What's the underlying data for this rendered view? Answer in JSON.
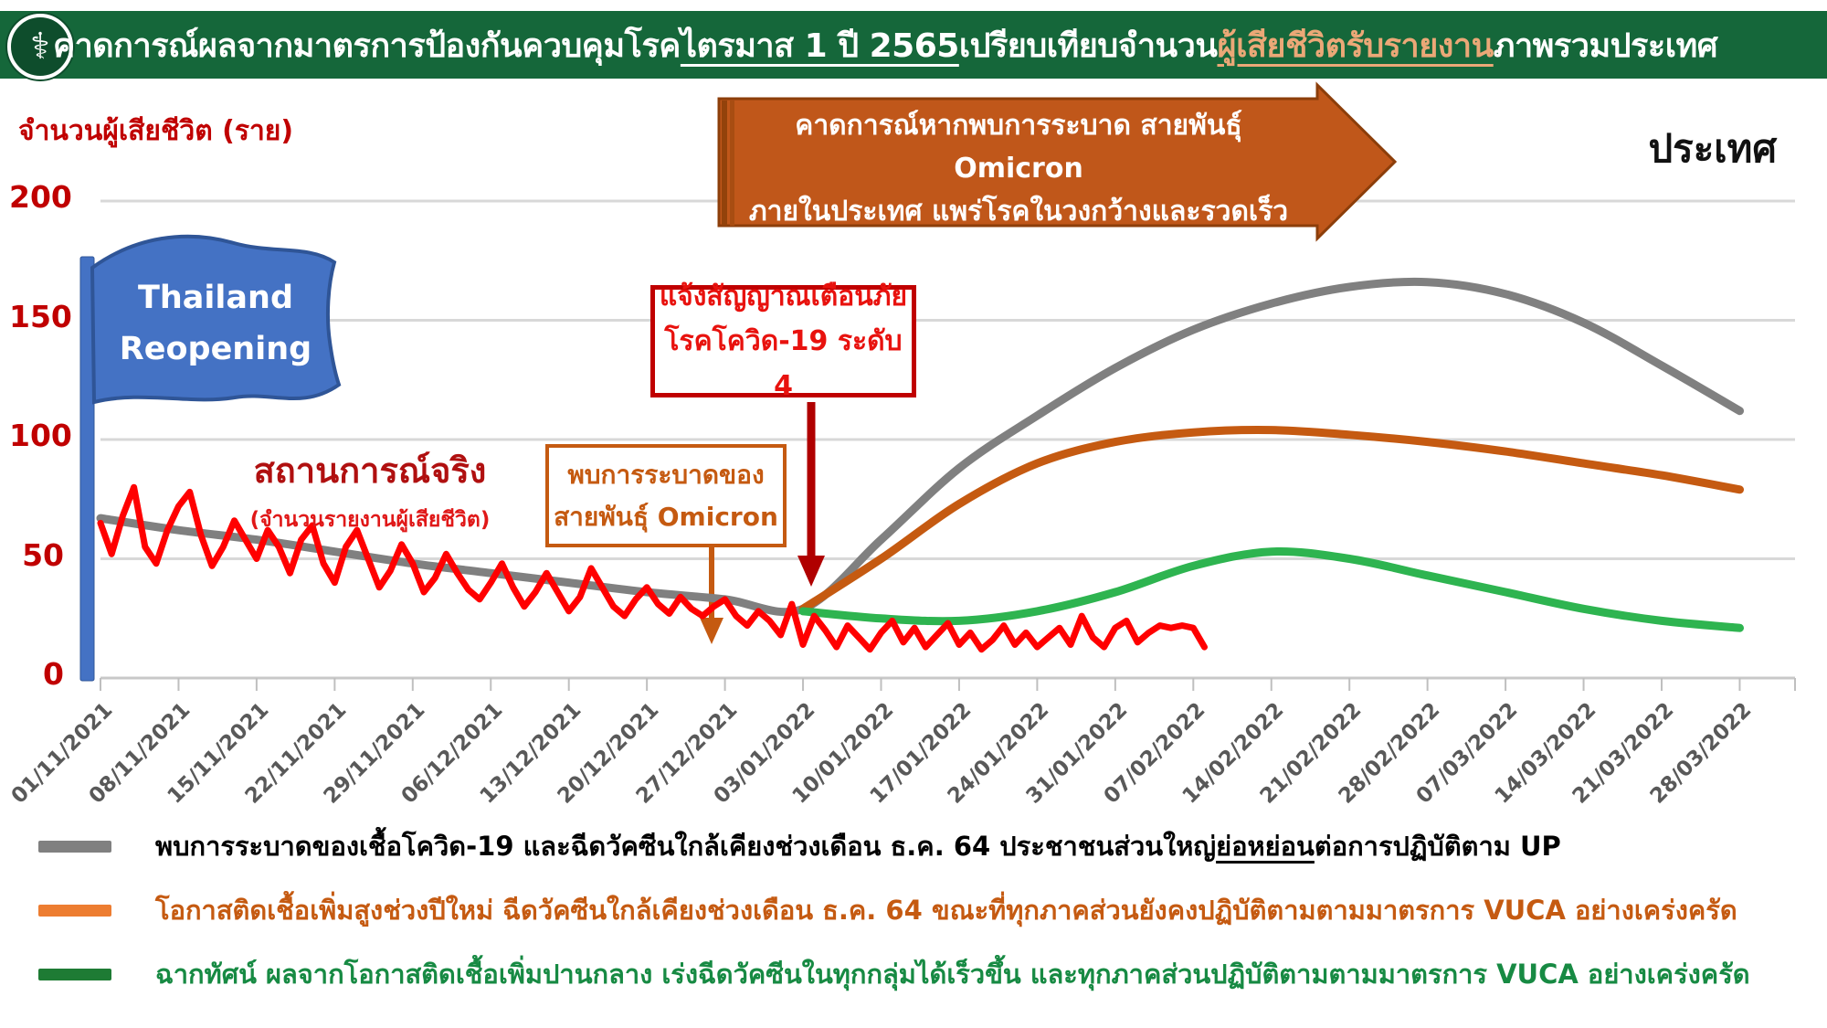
{
  "header": {
    "title_prefix": "คาดการณ์ผลจากมาตรการป้องกันควบคุมโรค ",
    "title_underlined": "ไตรมาส 1 ปี 2565",
    "title_mid": " เปรียบเทียบจำนวน",
    "title_highlight": "ผู้เสียชีวิตรับรายงาน",
    "title_suffix": " ภาพรวมประเทศ",
    "bg_color": "#15673A",
    "highlight_color": "#EBA877",
    "logo_name": "ministry-of-public-health-emblem"
  },
  "chart": {
    "y_axis_title": "จำนวนผู้เสียชีวิต (ราย)",
    "y_ticks": [
      200,
      150,
      100,
      50,
      0
    ],
    "region_label": "ประเทศ"
  },
  "annotations": {
    "flag": {
      "line1": "Thailand",
      "line2": "Reopening",
      "color": "#4472C4",
      "border_color": "#2F5597"
    },
    "banner": {
      "line1": "คาดการณ์หากพบการระบาด สายพันธุ์ Omicron",
      "line2": "ภายในประเทศ แพร่โรคในวงกว้างและรวดเร็ว",
      "color": "#C0571A",
      "border_color": "#8C3E0A",
      "edge_color1": "#93420B",
      "edge_color2": "#A84D12"
    },
    "alert_box": {
      "line1": "แจ้งสัญญาณเตือนภัย",
      "line2": "โรคโควิด-19 ระดับ 4",
      "border_color": "#C00000",
      "text_color": "#E8120E",
      "arrow_color": "#B00000"
    },
    "omicron_box": {
      "line1": "พบการระบาดของ",
      "line2": "สายพันธุ์ Omicron",
      "border_color": "#C55A11",
      "text_color": "#C55A11",
      "arrow_color": "#C55A11"
    },
    "actual": {
      "title": "สถานการณ์จริง",
      "subtitle": "(จำนวนรายงานผู้เสียชีวิต)"
    }
  },
  "legend": [
    {
      "color": "#808080",
      "text_color": "#000000",
      "pre": "พบการระบาดของเชื้อโควิด-19 และฉีดวัคซีนใกล้เคียงช่วงเดือน ธ.ค. 64 ประชาชนส่วนใหญ่",
      "underlined": "ย่อหย่อน",
      "post": "ต่อการปฏิบัติตาม UP"
    },
    {
      "color": "#ED7D31",
      "text_color": "#C55A11",
      "pre": "โอกาสติดเชื้อเพิ่มสูงช่วงปีใหม่ ฉีดวัคซีนใกล้เคียงช่วงเดือน ธ.ค. 64 ขณะที่ทุกภาคส่วนยังคงปฏิบัติตามตามมาตรการ VUCA อย่างเคร่งครัด",
      "underlined": "",
      "post": ""
    },
    {
      "color": "#1E7B34",
      "text_color": "#178A43",
      "pre": "ฉากทัศน์ ผลจากโอกาสติดเชื้อเพิ่มปานกลาง เร่งฉีดวัคซีนในทุกกลุ่มได้เร็วขึ้น และทุกภาคส่วนปฏิบัติตามตามมาตรการ VUCA อย่างเคร่งครัด",
      "underlined": "",
      "post": ""
    }
  ],
  "chart_data": {
    "type": "line",
    "title": "คาดการณ์ผลจากมาตรการป้องกันควบคุมโรค ไตรมาส 1 ปี 2565 เปรียบเทียบจำนวนผู้เสียชีวิตรับรายงาน ภาพรวมประเทศ",
    "xlabel": "",
    "ylabel": "จำนวนผู้เสียชีวิต (ราย)",
    "ylim": [
      0,
      200
    ],
    "y_gridlines": [
      50,
      100,
      150,
      200
    ],
    "grid_on": true,
    "grid_color": "#D8D8D8",
    "axis_color": "#C8C8C8",
    "tick_color": "#BFBFBF",
    "legend_position": "bottom",
    "x_tick_labels": [
      "01/11/2021",
      "08/11/2021",
      "15/11/2021",
      "22/11/2021",
      "29/11/2021",
      "06/12/2021",
      "13/12/2021",
      "20/12/2021",
      "27/12/2021",
      "03/01/2022",
      "10/01/2022",
      "17/01/2022",
      "24/01/2022",
      "31/01/2022",
      "07/02/2022",
      "14/02/2022",
      "21/02/2022",
      "28/02/2022",
      "07/03/2022",
      "14/03/2022",
      "21/03/2022",
      "28/03/2022"
    ],
    "series": [
      {
        "id": "projection-lax-up-gray",
        "name": "พบการระบาดของเชื้อโควิด-19 และฉีดวัคซีนใกล้เคียงช่วงเดือน ธ.ค. 64 ประชาชนส่วนใหญ่ย่อหย่อนต่อการปฏิบัติตาม UP",
        "color": "#808080",
        "width": 9,
        "smooth": true,
        "cadence": "weekly",
        "start_week": 0,
        "values": [
          67,
          62,
          58,
          53,
          48,
          44,
          40,
          36,
          33,
          29,
          58,
          88,
          110,
          130,
          146,
          157,
          164,
          166,
          161,
          149,
          131,
          112
        ]
      },
      {
        "id": "projection-newyear-vuca-orange",
        "name": "โอกาสติดเชื้อเพิ่มสูงช่วงปีใหม่ ฉีดวัคซีนใกล้เคียงช่วงเดือน ธ.ค. 64 ขณะที่ทุกภาคส่วนยังคงปฏิบัติตามตามมาตรการ VUCA อย่างเคร่งครัด",
        "color": "#C55A11",
        "width": 9,
        "smooth": true,
        "cadence": "weekly",
        "start_week": 9,
        "values": [
          29,
          50,
          73,
          90,
          99,
          103,
          104,
          102,
          99,
          95,
          90,
          85,
          79
        ]
      },
      {
        "id": "scenario-moderate-vuca-green",
        "name": "ฉากทัศน์ ผลจากโอกาสติดเชื้อเพิ่มปานกลาง เร่งฉีดวัคซีนในทุกกลุ่มได้เร็วขึ้น และทุกภาคส่วนปฏิบัติตามตามมาตรการ VUCA อย่างเคร่งครัด",
        "color": "#2EB450",
        "width": 9,
        "smooth": true,
        "cadence": "weekly",
        "start_week": 9,
        "values": [
          28,
          25,
          24,
          28,
          36,
          47,
          53,
          50,
          43,
          36,
          29,
          24,
          21
        ]
      },
      {
        "id": "actual-reported-deaths-red",
        "name": "สถานการณ์จริง (จำนวนรายงานผู้เสียชีวิต)",
        "color": "#FF0000",
        "width": 7,
        "smooth": false,
        "cadence": "daily",
        "start_week": 0,
        "values": [
          65,
          52,
          68,
          80,
          55,
          48,
          62,
          72,
          78,
          60,
          47,
          55,
          66,
          58,
          50,
          62,
          55,
          44,
          58,
          64,
          48,
          40,
          55,
          62,
          50,
          38,
          45,
          56,
          48,
          36,
          42,
          52,
          44,
          37,
          33,
          40,
          48,
          38,
          30,
          36,
          44,
          36,
          28,
          34,
          46,
          38,
          30,
          26,
          33,
          38,
          31,
          27,
          34,
          29,
          26,
          30,
          33,
          26,
          22,
          28,
          24,
          18,
          31,
          14,
          26,
          20,
          13,
          22,
          17,
          12,
          19,
          24,
          15,
          21,
          13,
          18,
          23,
          14,
          19,
          12,
          16,
          22,
          14,
          19,
          13,
          17,
          21,
          14,
          26,
          17,
          13,
          21,
          24,
          15,
          19,
          22,
          21,
          22,
          21,
          13
        ]
      }
    ]
  }
}
